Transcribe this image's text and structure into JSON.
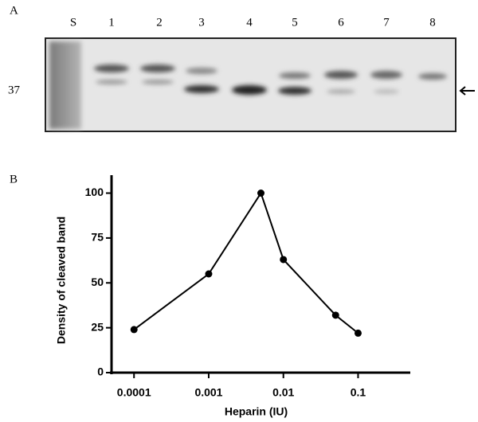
{
  "panels": {
    "a": "A",
    "b": "B"
  },
  "gel": {
    "lanes": [
      "S",
      "1",
      "2",
      "3",
      "4",
      "5",
      "6",
      "7",
      "8"
    ],
    "marker": "37"
  },
  "chart_data": {
    "type": "line",
    "x_label": "Heparin (IU)",
    "y_label": "Density of cleaved band",
    "x": [
      0.0001,
      0.001,
      0.005,
      0.01,
      0.05,
      0.1
    ],
    "values": [
      24,
      55,
      100,
      63,
      32,
      22
    ],
    "color": "#000000",
    "x_log": true,
    "xlim": [
      5e-05,
      0.5
    ],
    "xticks": [
      0.0001,
      0.001,
      0.01,
      0.1
    ],
    "ylim": [
      0,
      110
    ],
    "yticks": [
      0,
      25,
      50,
      75,
      100
    ]
  }
}
